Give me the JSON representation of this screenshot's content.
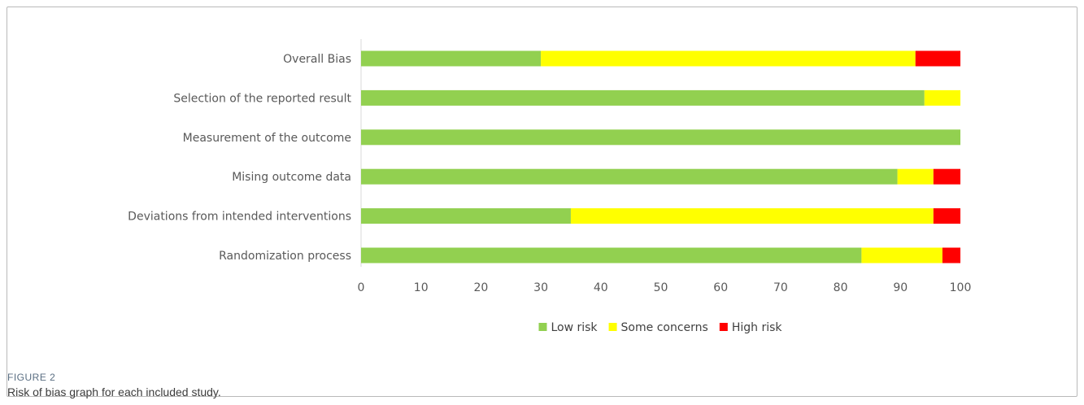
{
  "figure": {
    "label": "FIGURE 2",
    "caption": "Risk of bias graph for each included study."
  },
  "colors": {
    "low": "#92d050",
    "some": "#ffff00",
    "high": "#ff0000",
    "axis": "#d9d9d9",
    "text": "#595959"
  },
  "chart_data": {
    "type": "bar",
    "orientation": "horizontal",
    "stacked": true,
    "categories": [
      "Overall Bias",
      "Selection of the reported result",
      "Measurement of the outcome",
      "Mising outcome data",
      "Deviations from intended interventions",
      "Randomization process"
    ],
    "series": [
      {
        "name": "Low risk",
        "color": "#92d050",
        "values": [
          30,
          94,
          100,
          89.5,
          35,
          83.5
        ]
      },
      {
        "name": "Some concerns",
        "color": "#ffff00",
        "values": [
          62.5,
          6,
          0,
          6,
          60.5,
          13.5
        ]
      },
      {
        "name": "High risk",
        "color": "#ff0000",
        "values": [
          7.5,
          0,
          0,
          4.5,
          4.5,
          3
        ]
      }
    ],
    "xlim": [
      0,
      100
    ],
    "xticks": [
      "0",
      "10",
      "20",
      "30",
      "40",
      "50",
      "60",
      "70",
      "80",
      "90",
      "100"
    ],
    "legend_position": "bottom",
    "grid": false
  }
}
